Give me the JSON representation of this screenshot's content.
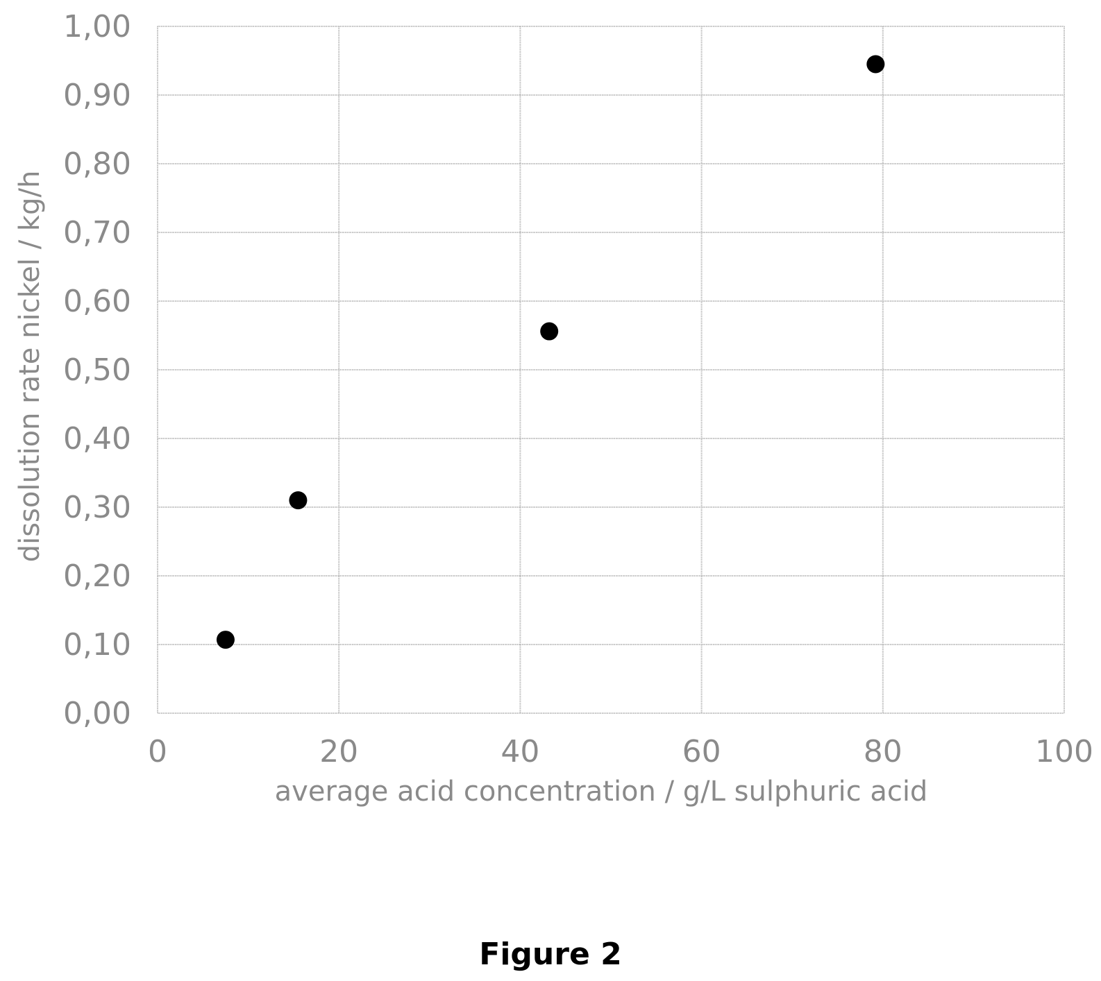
{
  "chart_data": {
    "type": "scatter",
    "xlabel": "average acid concentration / g/L sulphuric  acid",
    "ylabel": "dissolution rate nickel / kg/h",
    "xlim": [
      0,
      100
    ],
    "ylim": [
      0,
      1
    ],
    "x_ticks": [
      "0",
      "20",
      "40",
      "60",
      "80",
      "100"
    ],
    "y_ticks": [
      "0,00",
      "0,10",
      "0,20",
      "0,30",
      "0,40",
      "0,50",
      "0,60",
      "0,70",
      "0,80",
      "0,90",
      "1,00"
    ],
    "grid": true,
    "series": [
      {
        "x": [
          7.5,
          15.5,
          43.2,
          79.2
        ],
        "y": [
          0.107,
          0.31,
          0.556,
          0.945
        ]
      }
    ],
    "marker_color": "#000000",
    "grid_color": "#bdbdbd",
    "text_color": "#8a8a8a"
  },
  "caption": "Figure 2"
}
